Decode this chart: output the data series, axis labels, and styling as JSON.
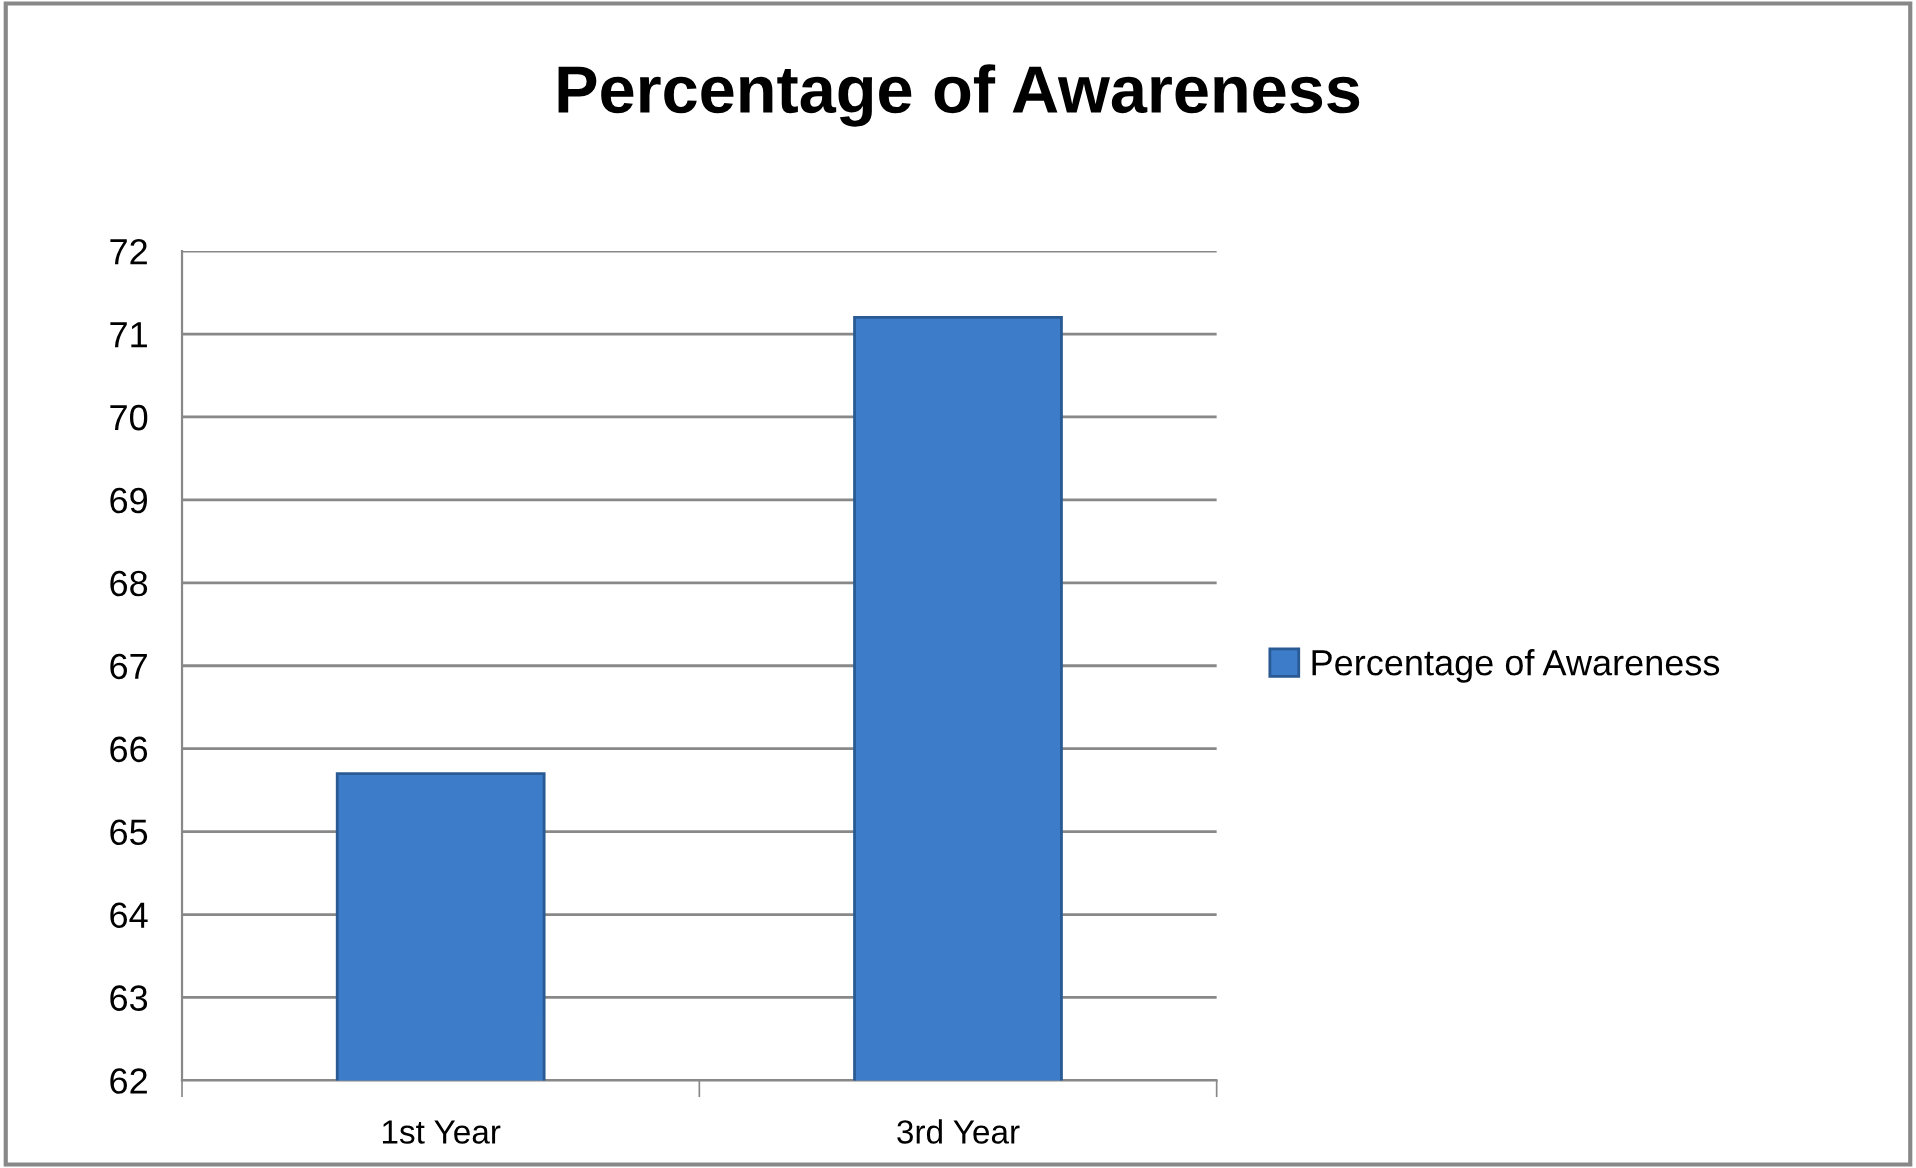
{
  "chart_data": {
    "type": "bar",
    "title": "Percentage of Awareness",
    "categories": [
      "1st Year",
      "3rd Year"
    ],
    "series": [
      {
        "name": "Percentage of Awareness",
        "color": "#3d7cc9",
        "values": [
          65.7,
          71.2
        ]
      }
    ],
    "ylim": [
      62,
      72
    ],
    "yticks": [
      62,
      63,
      64,
      65,
      66,
      67,
      68,
      69,
      70,
      71,
      72
    ],
    "grid": "y",
    "legend": "right"
  }
}
